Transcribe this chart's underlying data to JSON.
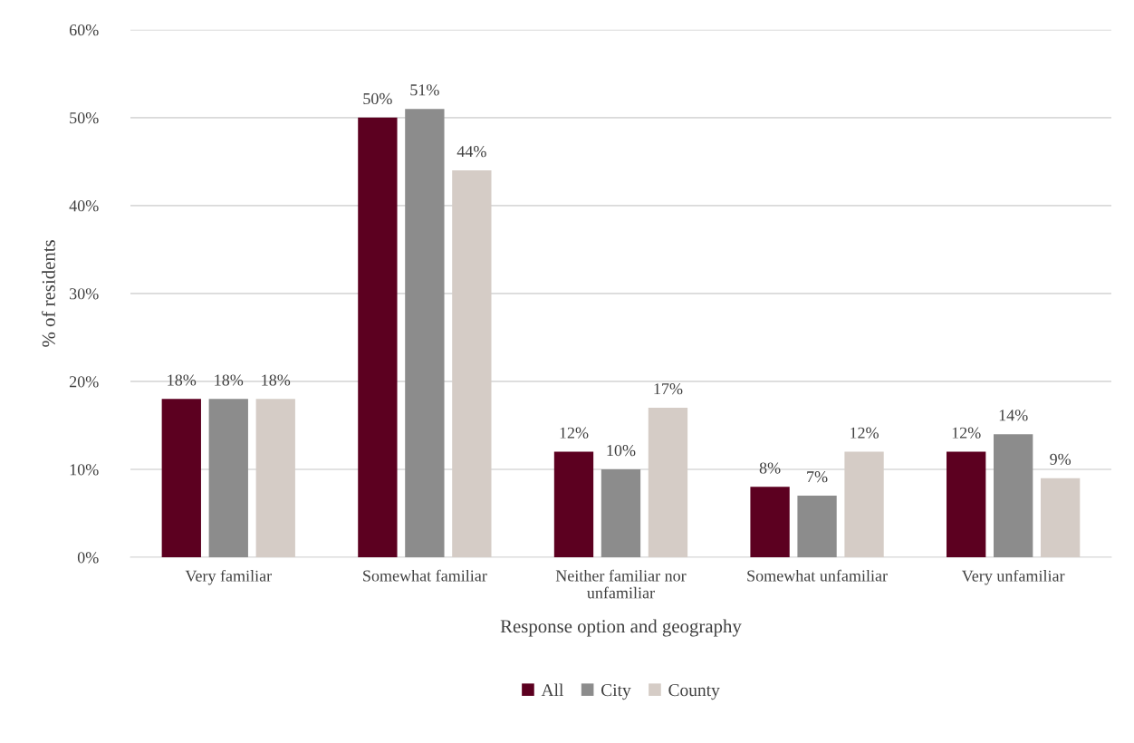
{
  "chart_data": {
    "type": "bar",
    "xlabel": "Response option and geography",
    "ylabel": "% of residents",
    "categories": [
      "Very familiar",
      "Somewhat familiar",
      "Neither familiar nor\nunfamiliar",
      "Somewhat unfamiliar",
      "Very unfamiliar"
    ],
    "series": [
      {
        "name": "All",
        "color": "#5c0020",
        "values": [
          18,
          50,
          12,
          8,
          12
        ],
        "value_labels": [
          "18%",
          "50%",
          "12%",
          "8%",
          "12%"
        ]
      },
      {
        "name": "City",
        "color": "#8c8c8c",
        "values": [
          18,
          51,
          10,
          7,
          14
        ],
        "value_labels": [
          "18%",
          "51%",
          "10%",
          "7%",
          "14%"
        ]
      },
      {
        "name": "County",
        "color": "#d5ccc6",
        "values": [
          18,
          44,
          17,
          12,
          9
        ],
        "value_labels": [
          "18%",
          "44%",
          "17%",
          "12%",
          "9%"
        ]
      }
    ],
    "ylim": [
      0,
      60
    ],
    "yticks": [
      {
        "value": 0,
        "label": "0%"
      },
      {
        "value": 10,
        "label": "10%"
      },
      {
        "value": 20,
        "label": "20%"
      },
      {
        "value": 30,
        "label": "30%"
      },
      {
        "value": 40,
        "label": "40%"
      },
      {
        "value": 50,
        "label": "50%"
      },
      {
        "value": 60,
        "label": "60%"
      }
    ],
    "grid": "y",
    "legend": "bottom"
  }
}
